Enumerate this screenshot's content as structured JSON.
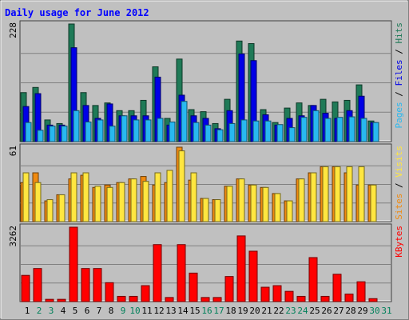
{
  "title": "Daily usage for June 2012",
  "colors": {
    "hits": "#1f7a57",
    "files": "#0000e6",
    "pages": "#28b8f0",
    "visits": "#f08a10",
    "sites": "#ffe640",
    "kbytes": "#ff0000",
    "title_text": "#0000ff",
    "weekend_label": "#00805a"
  },
  "chart_data": [
    {
      "type": "bar",
      "title": "Daily usage for June 2012",
      "categories": [
        "1",
        "2",
        "3",
        "4",
        "5",
        "6",
        "7",
        "8",
        "9",
        "10",
        "11",
        "12",
        "13",
        "14",
        "15",
        "16",
        "17",
        "18",
        "19",
        "20",
        "21",
        "22",
        "23",
        "24",
        "25",
        "26",
        "27",
        "28",
        "29",
        "30",
        "31"
      ],
      "weekend_days": [
        "2",
        "3",
        "9",
        "10",
        "16",
        "17",
        "23",
        "24",
        "30",
        "31"
      ],
      "axis_max_label": "228",
      "ylim": [
        0,
        228
      ],
      "legend": [
        {
          "label": "Pages",
          "color": "#28b8f0"
        },
        {
          "label": " / ",
          "color": "#000000"
        },
        {
          "label": "Files",
          "color": "#0000e6"
        },
        {
          "label": " / ",
          "color": "#000000"
        },
        {
          "label": "Hits",
          "color": "#1f7a57"
        }
      ],
      "series": [
        {
          "name": "Hits",
          "values": [
            95,
            105,
            42,
            35,
            228,
            95,
            70,
            75,
            60,
            60,
            80,
            145,
            45,
            160,
            62,
            58,
            35,
            82,
            195,
            190,
            62,
            37,
            65,
            75,
            70,
            82,
            77,
            80,
            110,
            40,
            0
          ]
        },
        {
          "name": "Files",
          "values": [
            68,
            93,
            32,
            32,
            182,
            70,
            45,
            73,
            50,
            50,
            50,
            125,
            32,
            90,
            50,
            45,
            25,
            60,
            170,
            157,
            52,
            32,
            45,
            50,
            70,
            55,
            45,
            60,
            88,
            37,
            0
          ]
        },
        {
          "name": "Pages",
          "values": [
            37,
            22,
            30,
            30,
            60,
            38,
            42,
            30,
            50,
            42,
            42,
            45,
            38,
            78,
            37,
            32,
            23,
            35,
            42,
            40,
            40,
            33,
            27,
            47,
            60,
            45,
            47,
            48,
            45,
            37,
            0
          ]
        }
      ]
    },
    {
      "type": "bar",
      "axis_max_label": "61",
      "ylim": [
        0,
        61
      ],
      "legend": [
        {
          "label": "Sites",
          "color": "#f08a10"
        },
        {
          "label": " / ",
          "color": "#000000"
        },
        {
          "label": "Visits",
          "color": "#ffe640"
        }
      ],
      "series": [
        {
          "name": "Visits",
          "values": [
            32,
            40,
            17,
            22,
            35,
            38,
            28,
            30,
            32,
            35,
            37,
            30,
            32,
            61,
            34,
            19,
            18,
            29,
            35,
            30,
            28,
            23,
            17,
            35,
            40,
            45,
            45,
            40,
            30,
            30,
            0
          ]
        },
        {
          "name": "Sites",
          "values": [
            40,
            32,
            18,
            22,
            40,
            40,
            29,
            28,
            32,
            35,
            33,
            40,
            42,
            58,
            40,
            19,
            18,
            29,
            35,
            30,
            28,
            23,
            17,
            35,
            40,
            45,
            45,
            45,
            45,
            30,
            0
          ]
        }
      ]
    },
    {
      "type": "bar",
      "axis_max_label": "3262",
      "ylim": [
        0,
        3262
      ],
      "legend": [
        {
          "label": "KBytes",
          "color": "#ff0000"
        }
      ],
      "series": [
        {
          "name": "KBytes",
          "values": [
            1150,
            1450,
            100,
            100,
            3262,
            1450,
            1450,
            830,
            230,
            230,
            700,
            2500,
            180,
            2500,
            1250,
            180,
            180,
            1100,
            2880,
            2210,
            630,
            700,
            450,
            230,
            1930,
            230,
            1200,
            330,
            870,
            130,
            0
          ]
        }
      ]
    }
  ]
}
